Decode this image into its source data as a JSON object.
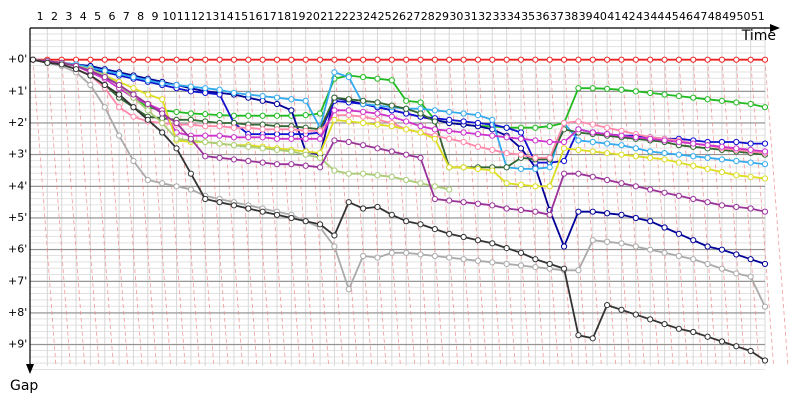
{
  "chart_data": {
    "type": "line",
    "x_label": "Time",
    "y_label": "Gap",
    "x": [
      0,
      1,
      2,
      3,
      4,
      5,
      6,
      7,
      8,
      9,
      10,
      11,
      12,
      13,
      14,
      15,
      16,
      17,
      18,
      19,
      20,
      21,
      22,
      23,
      24,
      25,
      26,
      27,
      28,
      29,
      30,
      31,
      32,
      33,
      34,
      35,
      36,
      37,
      38,
      39,
      40,
      41,
      42,
      43,
      44,
      45,
      46,
      47,
      48,
      49,
      50,
      51
    ],
    "xlim": [
      0,
      51
    ],
    "xticks": [
      1,
      2,
      3,
      4,
      5,
      6,
      7,
      8,
      9,
      10,
      11,
      12,
      13,
      14,
      15,
      16,
      17,
      18,
      19,
      20,
      21,
      22,
      23,
      24,
      25,
      26,
      27,
      28,
      29,
      30,
      31,
      32,
      33,
      34,
      35,
      36,
      37,
      38,
      39,
      40,
      41,
      42,
      43,
      44,
      45,
      46,
      47,
      48,
      49,
      50,
      51
    ],
    "ylim": [
      -1,
      9.8
    ],
    "yticks": [
      {
        "value": 0,
        "label": "+0'"
      },
      {
        "value": 1,
        "label": "+1'"
      },
      {
        "value": 2,
        "label": "+2'"
      },
      {
        "value": 3,
        "label": "+3'"
      },
      {
        "value": 4,
        "label": "+4'"
      },
      {
        "value": 5,
        "label": "+5'"
      },
      {
        "value": 6,
        "label": "+6'"
      },
      {
        "value": 7,
        "label": "+7'"
      },
      {
        "value": 8,
        "label": "+8'"
      },
      {
        "value": 9,
        "label": "+9'"
      }
    ],
    "grid": true,
    "series": [
      {
        "color": "#ee2222",
        "values": [
          0,
          0,
          0,
          0,
          0,
          0,
          0,
          0,
          0,
          0,
          0,
          0,
          0,
          0,
          0,
          0,
          0,
          0,
          0,
          0,
          0,
          0,
          0,
          0,
          0,
          0,
          0,
          0,
          0,
          0,
          0,
          0,
          0,
          0,
          0,
          0,
          0,
          0,
          0,
          0,
          0,
          0,
          0,
          0,
          0,
          0,
          0,
          0,
          0,
          0,
          0,
          0
        ]
      },
      {
        "color": "#22bb22",
        "values": [
          0,
          0.05,
          0.1,
          0.2,
          0.3,
          0.5,
          0.8,
          1.2,
          1.5,
          1.6,
          1.65,
          1.7,
          1.72,
          1.75,
          1.77,
          1.77,
          1.77,
          1.77,
          1.77,
          1.75,
          1.7,
          0.6,
          0.5,
          0.55,
          0.6,
          0.65,
          1.3,
          1.35,
          1.9,
          2.0,
          2.05,
          2.1,
          2.1,
          2.15,
          2.15,
          2.15,
          2.1,
          2.0,
          0.9,
          0.9,
          0.92,
          0.95,
          1.0,
          1.05,
          1.1,
          1.15,
          1.2,
          1.25,
          1.3,
          1.35,
          1.4,
          1.5
        ]
      },
      {
        "color": "#000099",
        "values": [
          0,
          0.05,
          0.1,
          0.15,
          0.2,
          0.3,
          0.4,
          0.5,
          0.6,
          0.7,
          0.8,
          0.9,
          1.0,
          1.05,
          1.1,
          1.2,
          1.3,
          1.4,
          1.6,
          2.9,
          3.0,
          1.2,
          1.3,
          1.4,
          1.5,
          1.6,
          1.7,
          1.8,
          1.9,
          2.0,
          2.05,
          2.1,
          2.2,
          2.4,
          2.8,
          3.4,
          4.75,
          5.9,
          4.8,
          4.8,
          4.85,
          4.9,
          5.0,
          5.1,
          5.3,
          5.5,
          5.7,
          5.9,
          6.0,
          6.15,
          6.3,
          6.45
        ]
      },
      {
        "color": "#1010d0",
        "values": [
          0,
          0.05,
          0.1,
          0.2,
          0.3,
          0.4,
          0.5,
          0.6,
          0.7,
          0.8,
          0.9,
          1.0,
          1.05,
          1.1,
          2.0,
          2.35,
          2.35,
          2.35,
          2.35,
          2.35,
          2.3,
          1.3,
          1.35,
          1.4,
          1.5,
          1.6,
          1.7,
          1.8,
          1.85,
          1.9,
          1.95,
          2.0,
          2.05,
          2.15,
          2.3,
          3.25,
          3.25,
          3.2,
          2.2,
          2.3,
          2.35,
          2.4,
          2.4,
          2.45,
          2.5,
          2.5,
          2.55,
          2.6,
          2.6,
          2.6,
          2.65,
          2.65
        ]
      },
      {
        "color": "#33aaee",
        "values": [
          0,
          0.05,
          0.1,
          0.15,
          0.25,
          0.35,
          0.45,
          0.55,
          0.65,
          0.75,
          0.8,
          0.85,
          0.9,
          0.95,
          1.05,
          1.1,
          1.15,
          1.2,
          1.25,
          1.3,
          2.15,
          0.4,
          0.55,
          1.4,
          1.45,
          1.5,
          1.55,
          1.55,
          1.6,
          1.65,
          1.7,
          1.75,
          1.9,
          3.4,
          3.45,
          3.45,
          3.4,
          2.0,
          2.55,
          2.6,
          2.65,
          2.7,
          2.8,
          2.9,
          2.95,
          3.0,
          3.05,
          3.1,
          3.15,
          3.2,
          3.25,
          3.3
        ]
      },
      {
        "color": "#336633",
        "values": [
          0,
          0.05,
          0.15,
          0.3,
          0.5,
          0.8,
          1.2,
          1.5,
          1.8,
          1.85,
          1.9,
          1.9,
          1.95,
          2.0,
          2.0,
          2.05,
          2.05,
          2.1,
          2.1,
          2.15,
          2.2,
          1.2,
          1.25,
          1.3,
          1.35,
          1.45,
          1.55,
          1.7,
          1.95,
          3.4,
          3.4,
          3.4,
          3.4,
          3.4,
          3.1,
          3.15,
          3.15,
          2.2,
          2.3,
          2.35,
          2.4,
          2.45,
          2.5,
          2.55,
          2.6,
          2.7,
          2.75,
          2.8,
          2.85,
          2.9,
          2.95,
          3.0
        ]
      },
      {
        "color": "#ff88aa",
        "values": [
          0,
          0.05,
          0.15,
          0.3,
          0.5,
          0.9,
          1.5,
          1.8,
          1.95,
          2.0,
          2.05,
          2.05,
          2.1,
          2.1,
          2.15,
          2.15,
          2.2,
          2.2,
          2.2,
          2.25,
          2.25,
          1.75,
          1.75,
          1.8,
          1.9,
          2.0,
          2.2,
          2.3,
          2.4,
          2.5,
          2.6,
          2.75,
          2.85,
          2.95,
          3.0,
          3.1,
          3.1,
          2.0,
          1.95,
          2.05,
          2.15,
          2.25,
          2.35,
          2.45,
          2.5,
          2.55,
          2.65,
          2.7,
          2.8,
          2.85,
          2.9,
          2.95
        ]
      },
      {
        "color": "#cc33cc",
        "values": [
          0,
          0.05,
          0.1,
          0.2,
          0.4,
          0.6,
          0.9,
          1.2,
          1.4,
          1.6,
          2.3,
          2.4,
          2.4,
          2.4,
          2.45,
          2.45,
          2.45,
          2.5,
          2.5,
          2.5,
          2.5,
          1.6,
          1.6,
          1.65,
          1.7,
          1.8,
          1.95,
          2.1,
          2.2,
          2.25,
          2.3,
          2.35,
          2.4,
          2.45,
          2.5,
          2.55,
          2.6,
          2.6,
          2.2,
          2.3,
          2.35,
          2.4,
          2.45,
          2.5,
          2.55,
          2.6,
          2.65,
          2.7,
          2.75,
          2.8,
          2.85,
          2.9
        ]
      },
      {
        "color": "#dddd22",
        "values": [
          0,
          0.05,
          0.1,
          0.2,
          0.3,
          0.5,
          0.7,
          0.9,
          1.1,
          1.25,
          2.55,
          2.6,
          2.6,
          2.65,
          2.7,
          2.7,
          2.75,
          2.8,
          2.85,
          2.9,
          2.95,
          1.9,
          1.95,
          2.0,
          2.05,
          2.1,
          2.2,
          2.3,
          2.5,
          3.4,
          3.4,
          3.45,
          3.5,
          3.9,
          3.95,
          4.0,
          4.0,
          2.8,
          2.85,
          2.9,
          2.95,
          3.0,
          3.05,
          3.1,
          3.15,
          3.25,
          3.35,
          3.45,
          3.55,
          3.65,
          3.7,
          3.75
        ]
      },
      {
        "color": "#aacc77",
        "values": [
          0,
          0.05,
          0.1,
          0.2,
          0.3,
          0.5,
          0.8,
          1.2,
          1.6,
          2.0,
          2.5,
          2.55,
          2.6,
          2.65,
          2.7,
          2.75,
          2.8,
          2.85,
          2.9,
          3.0,
          3.1,
          3.5,
          3.6,
          3.6,
          3.65,
          3.7,
          3.8,
          3.9,
          4.0,
          4.1,
          null,
          null,
          null,
          null,
          null,
          null,
          null,
          null,
          null,
          null,
          null,
          null,
          null,
          null,
          null,
          null,
          null,
          null,
          null,
          null,
          null,
          null
        ]
      },
      {
        "color": "#993399",
        "values": [
          0,
          0.05,
          0.1,
          0.2,
          0.35,
          0.55,
          0.8,
          1.1,
          1.4,
          1.7,
          2.0,
          2.5,
          3.05,
          3.1,
          3.15,
          3.2,
          3.25,
          3.3,
          3.3,
          3.35,
          3.4,
          2.55,
          2.6,
          2.7,
          2.8,
          2.9,
          3.0,
          3.1,
          4.4,
          4.45,
          4.5,
          4.55,
          4.6,
          4.7,
          4.75,
          4.8,
          4.9,
          3.6,
          3.6,
          3.7,
          3.8,
          3.9,
          4.0,
          4.1,
          4.2,
          4.3,
          4.4,
          4.5,
          4.6,
          4.65,
          4.7,
          4.8
        ]
      },
      {
        "color": "#aaaaaa",
        "values": [
          0,
          0.1,
          0.2,
          0.4,
          0.8,
          1.5,
          2.4,
          3.2,
          3.8,
          3.9,
          4.0,
          4.1,
          4.3,
          4.4,
          4.5,
          4.6,
          4.7,
          4.8,
          4.9,
          5.1,
          5.3,
          5.9,
          7.25,
          6.2,
          6.25,
          6.1,
          6.1,
          6.15,
          6.2,
          6.25,
          6.3,
          6.35,
          6.4,
          6.45,
          6.5,
          6.55,
          6.6,
          6.65,
          6.65,
          5.7,
          5.75,
          5.8,
          5.9,
          6.0,
          6.1,
          6.2,
          6.3,
          6.45,
          6.6,
          6.75,
          6.85,
          7.8
        ]
      },
      {
        "color": "#333333",
        "values": [
          0,
          0.1,
          0.15,
          0.3,
          0.5,
          0.8,
          1.1,
          1.5,
          1.9,
          2.3,
          2.8,
          3.6,
          4.4,
          4.5,
          4.6,
          4.7,
          4.8,
          4.9,
          5.0,
          5.1,
          5.2,
          5.55,
          4.5,
          4.7,
          4.65,
          4.9,
          5.1,
          5.2,
          5.35,
          5.5,
          5.6,
          5.7,
          5.8,
          5.95,
          6.1,
          6.3,
          6.45,
          6.6,
          8.7,
          8.8,
          7.75,
          7.9,
          8.05,
          8.2,
          8.35,
          8.5,
          8.6,
          8.75,
          8.9,
          9.05,
          9.2,
          9.5
        ]
      }
    ]
  }
}
